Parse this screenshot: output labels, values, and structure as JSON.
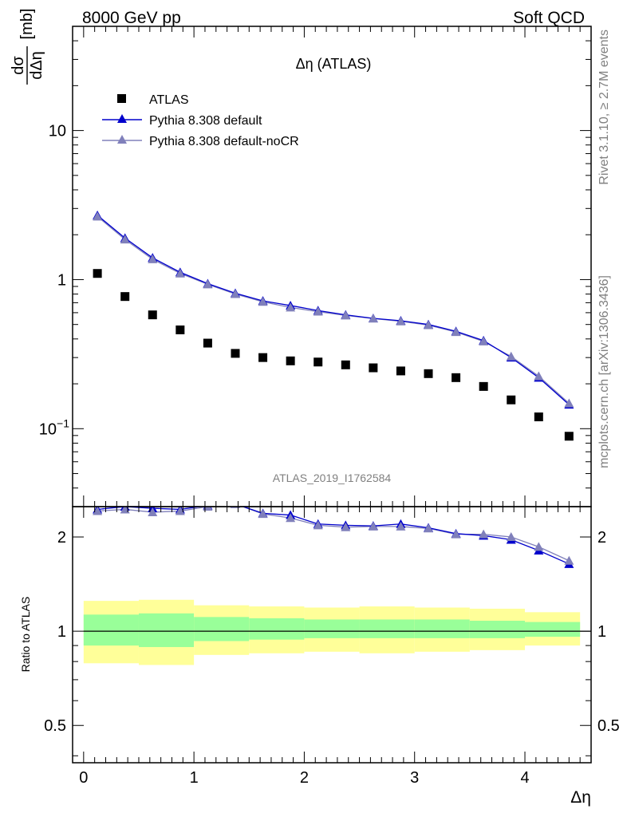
{
  "header": {
    "left": "8000 GeV pp",
    "right": "Soft QCD"
  },
  "side_text": {
    "rivet": "Rivet 3.1.10, ≥ 2.7M events",
    "mcplots": "mcplots.cern.ch [arXiv:1306.3436]"
  },
  "colors": {
    "data": "#000000",
    "mc1": "#0000cc",
    "mc2": "#8080bb",
    "band_outer": "#ffff99",
    "band_inner": "#99ff99",
    "grey_text": "#808080"
  },
  "chart_data": [
    {
      "type": "scatter",
      "title": "Δη (ATLAS)",
      "analysis_tag": "ATLAS_2019_I1762584",
      "ylabel_num": "dσ",
      "ylabel_den": "dΔη",
      "ylabel_unit": "[mb]",
      "yscale": "log",
      "xlim": [
        -0.1,
        4.6
      ],
      "ylim": [
        0.03,
        50
      ],
      "y_ticks": [
        {
          "value": 10,
          "label": "10"
        },
        {
          "value": 1,
          "label": "1"
        },
        {
          "value": 0.1,
          "label": "10",
          "sup": "−1"
        }
      ],
      "legend_position": "top-left",
      "x": [
        0.125,
        0.375,
        0.625,
        0.875,
        1.125,
        1.375,
        1.625,
        1.875,
        2.125,
        2.375,
        2.625,
        2.875,
        3.125,
        3.375,
        3.625,
        3.875,
        4.125,
        4.4
      ],
      "series": [
        {
          "name": "ATLAS",
          "marker": "square",
          "color": "#000000",
          "values": [
            1.1,
            0.77,
            0.58,
            0.46,
            0.375,
            0.32,
            0.3,
            0.285,
            0.28,
            0.268,
            0.256,
            0.244,
            0.234,
            0.22,
            0.192,
            0.156,
            0.12,
            0.089
          ]
        },
        {
          "name": "Pythia 8.308 default",
          "marker": "triangle",
          "color": "#0000cc",
          "values": [
            2.7,
            1.9,
            1.4,
            1.12,
            0.94,
            0.81,
            0.72,
            0.67,
            0.62,
            0.58,
            0.55,
            0.53,
            0.5,
            0.45,
            0.39,
            0.3,
            0.22,
            0.145
          ]
        },
        {
          "name": "Pythia 8.308 default-noCR",
          "marker": "triangle",
          "color": "#8080bb",
          "values": [
            2.65,
            1.86,
            1.37,
            1.1,
            0.93,
            0.8,
            0.71,
            0.65,
            0.61,
            0.575,
            0.548,
            0.525,
            0.495,
            0.445,
            0.385,
            0.305,
            0.225,
            0.148
          ]
        }
      ]
    },
    {
      "type": "scatter",
      "ylabel": "Ratio to ATLAS",
      "xlabel": "Δη",
      "yscale": "log",
      "xlim": [
        -0.1,
        4.6
      ],
      "ylim": [
        0.38,
        2.5
      ],
      "x_ticks": [
        {
          "value": 0,
          "label": "0"
        },
        {
          "value": 1,
          "label": "1"
        },
        {
          "value": 2,
          "label": "2"
        },
        {
          "value": 3,
          "label": "3"
        },
        {
          "value": 4,
          "label": "4"
        }
      ],
      "y_ticks": [
        {
          "value": 2,
          "label": "2"
        },
        {
          "value": 1,
          "label": "1"
        },
        {
          "value": 0.5,
          "label": "0.5"
        }
      ],
      "x": [
        0.125,
        0.375,
        0.625,
        0.875,
        1.125,
        1.375,
        1.625,
        1.875,
        2.125,
        2.375,
        2.625,
        2.875,
        3.125,
        3.375,
        3.625,
        3.875,
        4.125,
        4.4
      ],
      "series": [
        {
          "name": "Pythia 8.308 default",
          "color": "#0000cc",
          "values": [
            2.45,
            2.5,
            2.47,
            2.45,
            2.52,
            2.55,
            2.38,
            2.35,
            2.2,
            2.18,
            2.17,
            2.2,
            2.14,
            2.05,
            2.02,
            1.96,
            1.81,
            1.64
          ]
        },
        {
          "name": "Pythia 8.308 default-noCR",
          "color": "#8080bb",
          "values": [
            2.42,
            2.45,
            2.4,
            2.42,
            2.5,
            2.55,
            2.37,
            2.3,
            2.18,
            2.15,
            2.16,
            2.16,
            2.13,
            2.04,
            2.04,
            2.0,
            1.86,
            1.68
          ]
        }
      ],
      "bands": {
        "edges": [
          0,
          0.5,
          1.0,
          1.5,
          2.0,
          2.5,
          3.0,
          3.5,
          4.0,
          4.5
        ],
        "outer_lo": [
          0.79,
          0.78,
          0.84,
          0.85,
          0.86,
          0.85,
          0.86,
          0.87,
          0.9,
          0.9
        ],
        "outer_hi": [
          1.25,
          1.26,
          1.21,
          1.2,
          1.19,
          1.2,
          1.19,
          1.18,
          1.15,
          1.15
        ],
        "inner_lo": [
          0.9,
          0.89,
          0.93,
          0.94,
          0.95,
          0.95,
          0.95,
          0.95,
          0.96,
          0.96
        ],
        "inner_hi": [
          1.13,
          1.14,
          1.11,
          1.1,
          1.09,
          1.09,
          1.09,
          1.08,
          1.07,
          1.07
        ]
      }
    }
  ]
}
